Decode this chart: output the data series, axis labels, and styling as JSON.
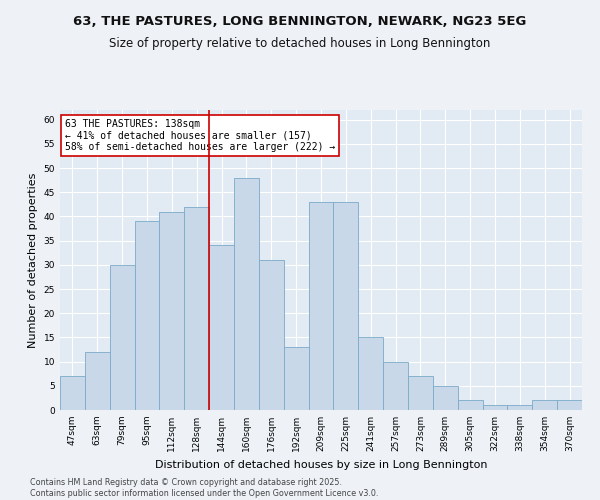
{
  "title1": "63, THE PASTURES, LONG BENNINGTON, NEWARK, NG23 5EG",
  "title2": "Size of property relative to detached houses in Long Bennington",
  "xlabel": "Distribution of detached houses by size in Long Bennington",
  "ylabel": "Number of detached properties",
  "footer1": "Contains HM Land Registry data © Crown copyright and database right 2025.",
  "footer2": "Contains public sector information licensed under the Open Government Licence v3.0.",
  "bins": [
    "47sqm",
    "63sqm",
    "79sqm",
    "95sqm",
    "112sqm",
    "128sqm",
    "144sqm",
    "160sqm",
    "176sqm",
    "192sqm",
    "209sqm",
    "225sqm",
    "241sqm",
    "257sqm",
    "273sqm",
    "289sqm",
    "305sqm",
    "322sqm",
    "338sqm",
    "354sqm",
    "370sqm"
  ],
  "values": [
    7,
    12,
    30,
    39,
    41,
    42,
    34,
    48,
    31,
    13,
    43,
    43,
    15,
    10,
    7,
    5,
    2,
    1,
    1,
    2,
    2
  ],
  "bar_color": "#c8d8e8",
  "bar_edge_color": "#7aaac8",
  "annotation_text": "63 THE PASTURES: 138sqm\n← 41% of detached houses are smaller (157)\n58% of semi-detached houses are larger (222) →",
  "vline_color": "#cc0000",
  "annotation_box_edge": "#cc0000",
  "ylim": [
    0,
    62
  ],
  "yticks": [
    0,
    5,
    10,
    15,
    20,
    25,
    30,
    35,
    40,
    45,
    50,
    55,
    60
  ],
  "bg_color": "#eef2f7",
  "plot_bg_color": "#e2eaf3",
  "grid_color": "#ffffff",
  "title_fontsize": 9.5,
  "subtitle_fontsize": 8.5,
  "tick_fontsize": 6.5,
  "label_fontsize": 8,
  "footer_fontsize": 5.8,
  "annot_fontsize": 7
}
